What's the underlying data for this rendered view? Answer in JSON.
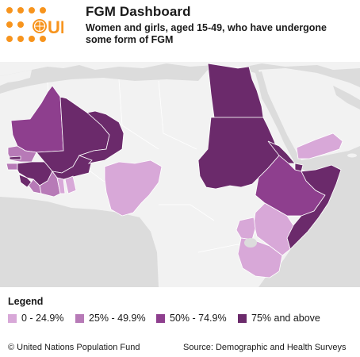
{
  "header": {
    "title": "FGM Dashboard",
    "subtitle": "Women and girls, aged 15-49, who have undergone some form of FGM"
  },
  "logo": {
    "text": "UN",
    "name": "unfpa-logo",
    "color": "#f7941d"
  },
  "legend": {
    "title": "Legend",
    "items": [
      {
        "label": "0 - 24.9%",
        "color": "#d8a8d8"
      },
      {
        "label": "25% - 49.9%",
        "color": "#b77ab7"
      },
      {
        "label": "50% - 74.9%",
        "color": "#8e3f8e"
      },
      {
        "label": "75% and above",
        "color": "#6b2a6b"
      }
    ]
  },
  "footer": {
    "copyright": "© United Nations Population Fund",
    "source": "Source: Demographic and Health Surveys"
  },
  "colors": {
    "ocean": "#dcdcdc",
    "land": "#f2f2f2",
    "border": "#ffffff"
  }
}
